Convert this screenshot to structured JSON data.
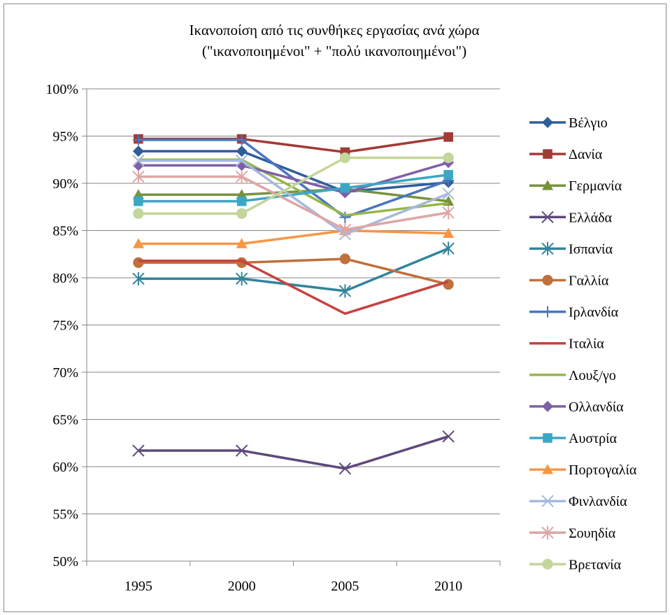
{
  "chart_data": {
    "type": "line",
    "title": "Ικανοποίση από τις συνθήκες εργασίας ανά χώρα",
    "subtitle": "(\"ικανοποιημένοι\" + \"πολύ ικανοποιημένοι\")",
    "x": [
      "1995",
      "2000",
      "2005",
      "2010"
    ],
    "ylim": [
      0.5,
      1.0
    ],
    "yticks": [
      "50%",
      "55%",
      "60%",
      "65%",
      "70%",
      "75%",
      "80%",
      "85%",
      "90%",
      "95%",
      "100%"
    ],
    "grid": "horizontal",
    "legend_position": "right",
    "series": [
      {
        "name": "Βέλγιο",
        "values": [
          0.934,
          0.934,
          0.891,
          0.901
        ],
        "color": "#2E5E9B",
        "marker": "diamond"
      },
      {
        "name": "Δανία",
        "values": [
          0.947,
          0.947,
          0.933,
          0.949
        ],
        "color": "#A23A36",
        "marker": "square"
      },
      {
        "name": "Γερμανία",
        "values": [
          0.888,
          0.888,
          0.894,
          0.881
        ],
        "color": "#76933C",
        "marker": "triangle"
      },
      {
        "name": "Ελλάδα",
        "values": [
          0.617,
          0.617,
          0.598,
          0.632
        ],
        "color": "#5F497A",
        "marker": "x"
      },
      {
        "name": "Ισπανία",
        "values": [
          0.799,
          0.799,
          0.786,
          0.831
        ],
        "color": "#31859C",
        "marker": "star"
      },
      {
        "name": "Γαλλία",
        "values": [
          0.816,
          0.816,
          0.82,
          0.793
        ],
        "color": "#C0703A",
        "marker": "circle"
      },
      {
        "name": "Ιρλανδία",
        "values": [
          0.946,
          0.946,
          0.864,
          0.903
        ],
        "color": "#4A76BE",
        "marker": "plus"
      },
      {
        "name": "Ιταλία",
        "values": [
          0.818,
          0.818,
          0.762,
          0.796
        ],
        "color": "#C5433F",
        "marker": "none"
      },
      {
        "name": "Λουξ/γο",
        "values": [
          0.925,
          0.925,
          0.866,
          0.879
        ],
        "color": "#97B64B",
        "marker": "none"
      },
      {
        "name": "Ολλανδία",
        "values": [
          0.919,
          0.919,
          0.89,
          0.922
        ],
        "color": "#7F5FA8",
        "marker": "diamond"
      },
      {
        "name": "Αυστρία",
        "values": [
          0.881,
          0.881,
          0.895,
          0.909
        ],
        "color": "#3BA7C4",
        "marker": "square"
      },
      {
        "name": "Πορτογαλία",
        "values": [
          0.836,
          0.836,
          0.85,
          0.847
        ],
        "color": "#F79646",
        "marker": "triangle"
      },
      {
        "name": "Φινλανδία",
        "values": [
          0.924,
          0.924,
          0.846,
          0.889
        ],
        "color": "#A6B9DD",
        "marker": "x"
      },
      {
        "name": "Σουηδία",
        "values": [
          0.907,
          0.907,
          0.851,
          0.869
        ],
        "color": "#DDA6A6",
        "marker": "star"
      },
      {
        "name": "Βρετανία",
        "values": [
          0.868,
          0.868,
          0.927,
          0.927
        ],
        "color": "#C3D69B",
        "marker": "circle"
      }
    ]
  }
}
